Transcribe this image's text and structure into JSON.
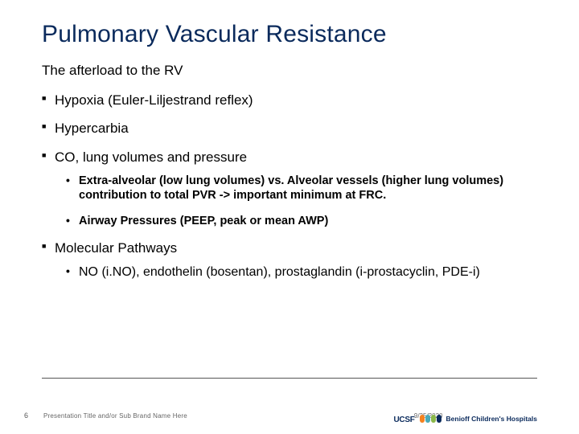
{
  "colors": {
    "title": "#0a2a5c",
    "text": "#000000",
    "footer_text": "#666666",
    "footer_line": "#555555",
    "background": "#ffffff",
    "logo_primary": "#0a2a5c",
    "blob_orange": "#f58220",
    "blob_teal": "#4aa9b8",
    "blob_green": "#8bb84a",
    "blob_navy": "#0a2a5c"
  },
  "title": "Pulmonary Vascular Resistance",
  "subtitle": "The afterload to the RV",
  "bullets": [
    {
      "text": "Hypoxia (Euler-Liljestrand reflex)",
      "sub": []
    },
    {
      "text": "Hypercarbia",
      "sub": []
    },
    {
      "text": "CO, lung volumes and pressure",
      "sub_bold": true,
      "sub": [
        "Extra-alveolar (low lung volumes) vs. Alveolar vessels (higher lung volumes) contribution to total PVR -> important minimum at FRC.",
        "Airway Pressures (PEEP, peak or mean AWP)"
      ]
    },
    {
      "text": "Molecular Pathways",
      "sub_bold": false,
      "sub": [
        "NO (i.NO), endothelin (bosentan), prostaglandin (i-prostacyclin, PDE-i)"
      ]
    }
  ],
  "footer": {
    "page_number": "6",
    "presentation_title": "Presentation Title and/or Sub Brand Name Here",
    "date": "9/25/2020"
  },
  "logo": {
    "ucsf": "UCSF",
    "line1": "Benioff Children's Hospitals"
  }
}
